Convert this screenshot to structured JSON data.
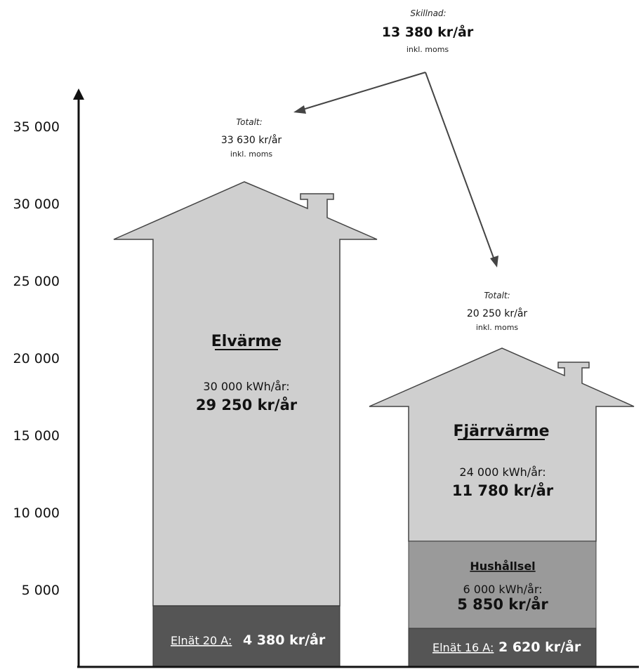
{
  "chart_data": {
    "type": "bar",
    "stacked": true,
    "categories": [
      "Elvärme",
      "Fjärrvärme"
    ],
    "y_ticks": [
      "5 000",
      "10 000",
      "15 000",
      "20 000",
      "25 000",
      "30 000",
      "35 000"
    ],
    "y_tick_values": [
      5000,
      10000,
      15000,
      20000,
      25000,
      30000,
      35000
    ],
    "ylim": [
      0,
      37500
    ],
    "colors": {
      "light": "#cfcfcf",
      "medium": "#9a9a9a",
      "dark": "#555555",
      "axis": "#111111",
      "stroke": "#444444"
    },
    "bars": [
      {
        "name": "Elvärme",
        "segments": [
          {
            "label_underlined": "Elnät 20 A:",
            "label_value": "4 380 kr/år",
            "value": 4380,
            "shade": "dark"
          },
          {
            "title": "Elvärme",
            "energy": "30 000 kWh/år:",
            "cost": "29 250 kr/år",
            "value": 29250,
            "shade": "light"
          }
        ],
        "total_label": "Totalt:",
        "total_value": "33 630 kr/år",
        "total_note": "inkl. moms",
        "total": 33630
      },
      {
        "name": "Fjärrvärme",
        "segments": [
          {
            "label_underlined": "Elnät 16 A:",
            "label_value": "2 620 kr/år",
            "value": 2620,
            "shade": "dark"
          },
          {
            "title": "Hushållsel",
            "energy": "6 000 kWh/år:",
            "cost": "5 850 kr/år",
            "value": 5850,
            "shade": "medium"
          },
          {
            "title": "Fjärrvärme",
            "energy": "24 000 kWh/år:",
            "cost": "11 780 kr/år",
            "value": 11780,
            "shade": "light"
          }
        ],
        "total_label": "Totalt:",
        "total_value": "20 250 kr/år",
        "total_note": "inkl. moms",
        "total": 20250
      }
    ],
    "difference": {
      "label": "Skillnad:",
      "value": "13 380 kr/år",
      "note": "inkl. moms",
      "amount": 13380
    }
  }
}
